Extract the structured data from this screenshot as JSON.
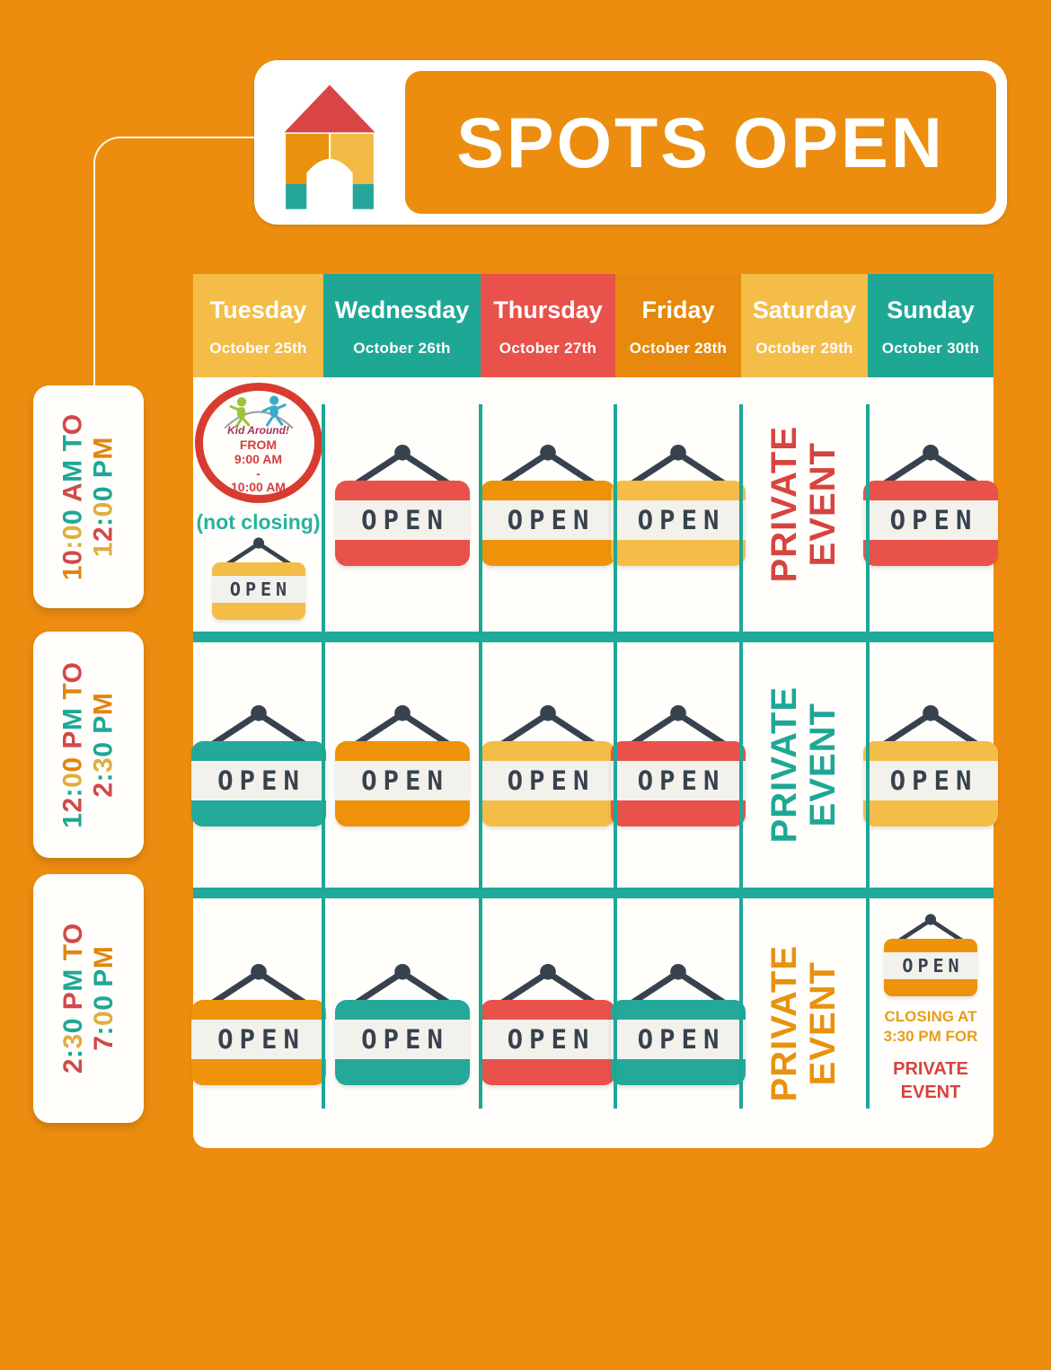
{
  "palette": {
    "bg": "#EC8D10",
    "gold": "#F3BD47",
    "teal": "#1FA795",
    "red": "#E9514B",
    "friday_orange": "#E6890C",
    "sign_orange": "#EE9309",
    "sign_teal": "#23A89A",
    "dark": "#37424E",
    "bar_teal": "#1FAA9B",
    "ring_red": "#D93B30",
    "label_red": "#D14949",
    "label_orange": "#E2850F",
    "label_gold": "#DFAE3E",
    "label_teal": "#1FA795",
    "private_red": "#D64440",
    "private_teal": "#1FA795",
    "private_orange": "#E8920E"
  },
  "header": {
    "title": "SPOTS OPEN",
    "logo": "block-house-icon"
  },
  "days": [
    {
      "label": "Tuesday",
      "date": "October 25th",
      "color": "gold"
    },
    {
      "label": "Wednesday",
      "date": "October 26th",
      "color": "teal"
    },
    {
      "label": "Thursday",
      "date": "October 27th",
      "color": "red"
    },
    {
      "label": "Friday",
      "date": "October 28th",
      "color": "friday_orange"
    },
    {
      "label": "Saturday",
      "date": "October 29th",
      "color": "gold"
    },
    {
      "label": "Sunday",
      "date": "October 30th",
      "color": "teal"
    }
  ],
  "time_slots": [
    {
      "line1": "10:00 AM TO",
      "line2": "12:00 PM",
      "colors1": [
        "label_orange",
        "label_red",
        "label_gold",
        "label_gold",
        "label_teal",
        "",
        "label_red",
        "label_teal",
        "",
        "label_teal",
        "label_red"
      ],
      "colors2": [
        "label_gold",
        "label_red",
        "label_teal",
        "label_gold",
        "label_teal",
        "",
        "label_teal",
        "label_orange"
      ]
    },
    {
      "line1": "12:00 PM TO",
      "line2": "2:30 PM",
      "colors1": [
        "label_teal",
        "label_red",
        "label_teal",
        "label_gold",
        "label_orange",
        "",
        "label_red",
        "label_teal",
        "",
        "label_orange",
        "label_red"
      ],
      "colors2": [
        "label_red",
        "label_teal",
        "label_gold",
        "label_teal",
        "",
        "label_teal",
        "label_orange"
      ]
    },
    {
      "line1": "2:30 PM TO",
      "line2": "7:00 PM",
      "colors1": [
        "label_red",
        "label_teal",
        "label_gold",
        "label_teal",
        "",
        "label_red",
        "label_teal",
        "",
        "label_orange",
        "label_red"
      ],
      "colors2": [
        "label_red",
        "label_teal",
        "label_gold",
        "label_teal",
        "",
        "label_teal",
        "label_orange"
      ]
    }
  ],
  "signs": {
    "open_label": "OPEN",
    "private_line1": "PRIVATE",
    "private_line2": "EVENT"
  },
  "kid_around": {
    "logo_text": "Kid Around!",
    "from": "FROM",
    "time1": "9:00 AM",
    "dash": "-",
    "time2": "10:00 AM",
    "note": "(not closing)"
  },
  "sunday_closing": {
    "closing_line1": "CLOSING AT",
    "closing_line2": "3:30 PM FOR",
    "private_line1": "PRIVATE",
    "private_line2": "EVENT"
  },
  "grid": {
    "rows": [
      {
        "cells": [
          {
            "type": "kid-around",
            "sign": "gold"
          },
          {
            "type": "sign",
            "sign": "red"
          },
          {
            "type": "sign",
            "sign": "sign_orange"
          },
          {
            "type": "sign",
            "sign": "gold"
          },
          {
            "type": "private",
            "color": "private_red"
          },
          {
            "type": "sign",
            "sign": "red"
          }
        ]
      },
      {
        "cells": [
          {
            "type": "sign",
            "sign": "sign_teal"
          },
          {
            "type": "sign",
            "sign": "sign_orange"
          },
          {
            "type": "sign",
            "sign": "gold"
          },
          {
            "type": "sign",
            "sign": "red"
          },
          {
            "type": "private",
            "color": "private_teal"
          },
          {
            "type": "sign",
            "sign": "gold"
          }
        ]
      },
      {
        "cells": [
          {
            "type": "sign",
            "sign": "sign_orange"
          },
          {
            "type": "sign",
            "sign": "sign_teal"
          },
          {
            "type": "sign",
            "sign": "red"
          },
          {
            "type": "sign",
            "sign": "sign_teal"
          },
          {
            "type": "private",
            "color": "private_orange"
          },
          {
            "type": "sign-closing",
            "sign": "sign_orange"
          }
        ]
      }
    ]
  }
}
